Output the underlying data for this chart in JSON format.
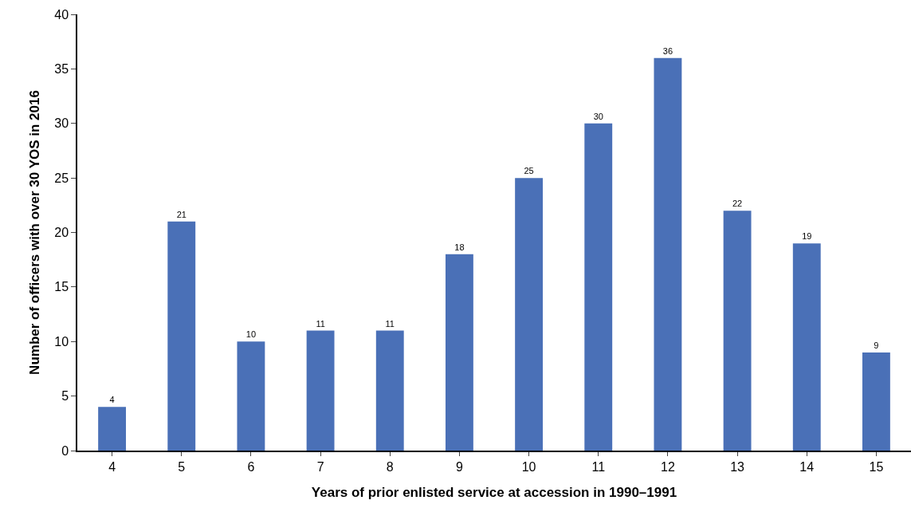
{
  "chart_data": {
    "type": "bar",
    "xlabel": "Years of prior enlisted service at accession in 1990–1991",
    "ylabel": "Number of officers with over 30 YOS in 2016",
    "categories": [
      "4",
      "5",
      "6",
      "7",
      "8",
      "9",
      "10",
      "11",
      "12",
      "13",
      "14",
      "15"
    ],
    "values": [
      4,
      21,
      10,
      11,
      11,
      18,
      25,
      30,
      36,
      22,
      19,
      9
    ],
    "color": "#4a70b7",
    "ylim": [
      0,
      40
    ],
    "yticks": [
      0,
      5,
      10,
      15,
      20,
      25,
      30,
      35,
      40
    ],
    "grid": false,
    "data_labels": true
  }
}
